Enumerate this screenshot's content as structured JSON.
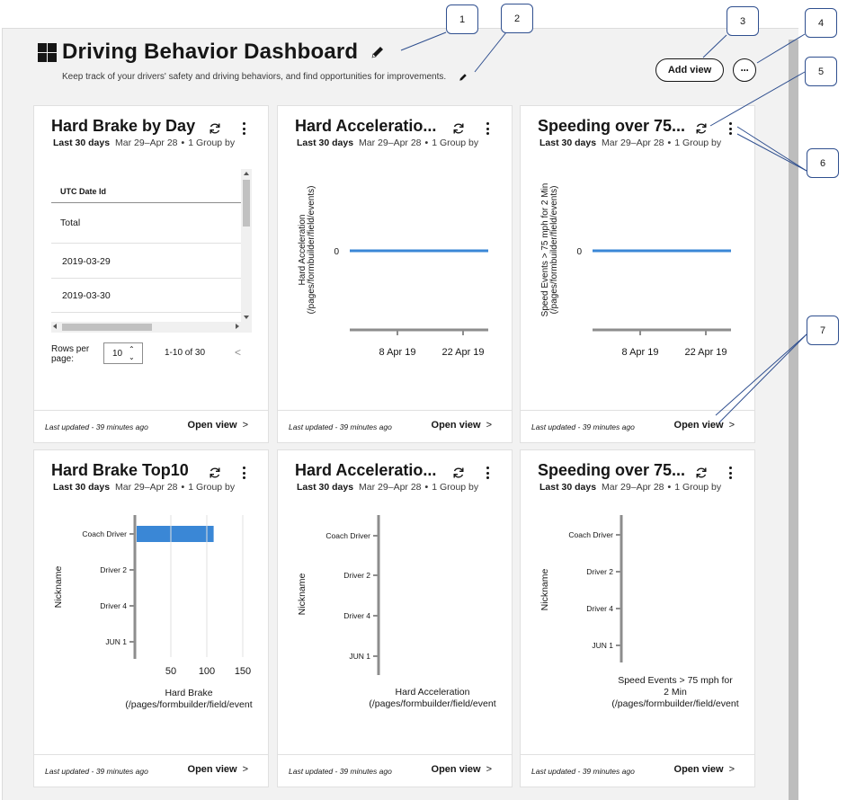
{
  "dashboard": {
    "title": "Driving Behavior Dashboard",
    "subtitle": "Keep track of your drivers' safety and driving behaviors, and find opportunities for improvements.",
    "add_view_label": "Add view",
    "more_label": "···"
  },
  "common": {
    "range_label": "Last 30 days",
    "dates": "Mar 29–Apr 28",
    "dot": "•",
    "group_by": "1 Group by",
    "last_updated": "Last updated - 39 minutes ago",
    "open_view": "Open view",
    "chevron": ">"
  },
  "cards": [
    {
      "title": "Hard Brake by Day",
      "table": {
        "column_header": "UTC Date Id",
        "rows": [
          "Total",
          "2019-03-29",
          "2019-03-30"
        ],
        "rows_per_page_label": "Rows per page:",
        "rows_per_page_value": "10",
        "range_text": "1-10 of 30",
        "prev": "<"
      }
    },
    {
      "title": "Hard Acceleratio...",
      "chart_data": {
        "type": "line",
        "ylabel": "Hard Acceleration (/pages/formbuilder/field/events)",
        "x_ticks": [
          "8 Apr 19",
          "22 Apr 19"
        ],
        "y_ticks": [
          "0"
        ],
        "series": [
          {
            "values": [
              0,
              0
            ]
          }
        ],
        "x": [
          "Mar 29",
          "Apr 28"
        ]
      }
    },
    {
      "title": "Speeding over 75...",
      "chart_data": {
        "type": "line",
        "ylabel": "Speed Events > 75 mph for 2 Min (/pages/formbuilder/field/events)",
        "x_ticks": [
          "8 Apr 19",
          "22 Apr 19"
        ],
        "y_ticks": [
          "0"
        ],
        "series": [
          {
            "values": [
              0,
              0
            ]
          }
        ],
        "x": [
          "Mar 29",
          "Apr 28"
        ]
      }
    },
    {
      "title": "Hard Brake Top10",
      "chart_data": {
        "type": "bar",
        "orientation": "horizontal",
        "categories": [
          "Coach Driver",
          "Driver 2",
          "Driver 4",
          "JUN 1"
        ],
        "values": [
          107,
          0,
          0,
          0
        ],
        "x_ticks": [
          "50",
          "100",
          "150"
        ],
        "xlim": [
          0,
          150
        ],
        "ylabel": "Nickname",
        "xlabel": "Hard Brake (/pages/formbuilder/field/event",
        "bar_color": "#3a87d6"
      }
    },
    {
      "title": "Hard Acceleratio...",
      "chart_data": {
        "type": "bar",
        "orientation": "horizontal",
        "categories": [
          "Coach Driver",
          "Driver 2",
          "Driver 4",
          "JUN 1"
        ],
        "values": [
          0,
          0,
          0,
          0
        ],
        "ylabel": "Nickname",
        "xlabel": "Hard Acceleration (/pages/formbuilder/field/event"
      }
    },
    {
      "title": "Speeding over 75...",
      "chart_data": {
        "type": "bar",
        "orientation": "horizontal",
        "categories": [
          "Coach Driver",
          "Driver 2",
          "Driver 4",
          "JUN 1"
        ],
        "values": [
          0,
          0,
          0,
          0
        ],
        "ylabel": "Nickname",
        "xlabel": "Speed Events > 75 mph for 2 Min (/pages/formbuilder/field/event"
      }
    }
  ],
  "callouts": [
    "1",
    "2",
    "3",
    "4",
    "5",
    "6",
    "7"
  ],
  "colors": {
    "accent": "#3a87d6",
    "callout_border": "#2f4f8f"
  }
}
